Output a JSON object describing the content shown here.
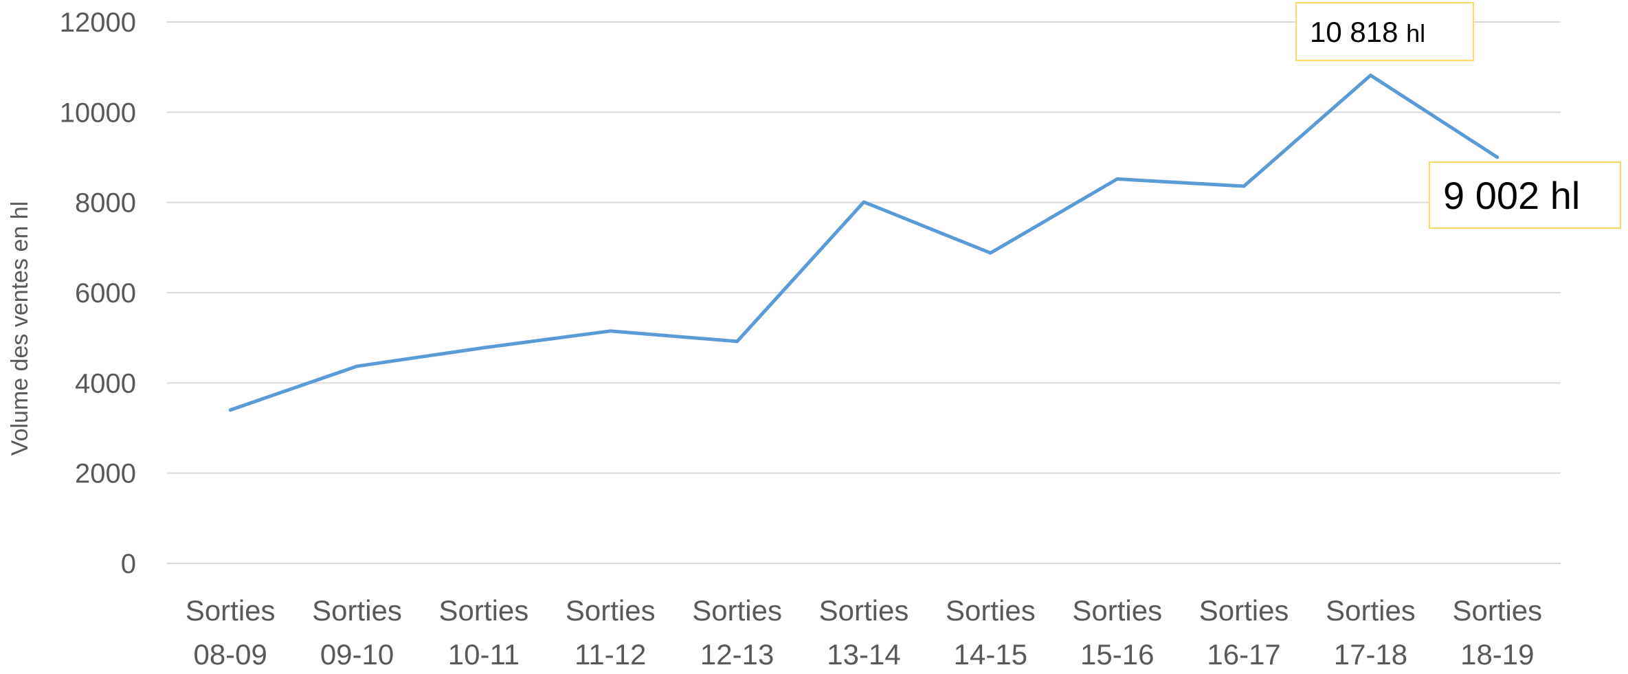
{
  "chart_data": {
    "type": "line",
    "title": "",
    "xlabel": "",
    "ylabel": "Volume des ventes en hl",
    "ylim": [
      0,
      12000
    ],
    "yticks": [
      "0",
      "2000",
      "4000",
      "6000",
      "8000",
      "10000",
      "12000"
    ],
    "grid": true,
    "legend": "none",
    "categories": [
      [
        "Sorties",
        "08-09"
      ],
      [
        "Sorties",
        "09-10"
      ],
      [
        "Sorties",
        "10-11"
      ],
      [
        "Sorties",
        "11-12"
      ],
      [
        "Sorties",
        "12-13"
      ],
      [
        "Sorties",
        "13-14"
      ],
      [
        "Sorties",
        "14-15"
      ],
      [
        "Sorties",
        "15-16"
      ],
      [
        "Sorties",
        "16-17"
      ],
      [
        "Sorties",
        "17-18"
      ],
      [
        "Sorties",
        "18-19"
      ]
    ],
    "series": [
      {
        "color": "#5b9bd5",
        "values": [
          3400,
          4370,
          4780,
          5150,
          4920,
          8010,
          6880,
          8520,
          8360,
          10818,
          9002
        ]
      }
    ],
    "annotations": [
      {
        "category_index": 9,
        "number": "10 818",
        "unit": "hl",
        "border_color": "#ffd966"
      },
      {
        "category_index": 10,
        "number": "9 002",
        "unit": "hl",
        "border_color": "#ffd966"
      }
    ]
  }
}
